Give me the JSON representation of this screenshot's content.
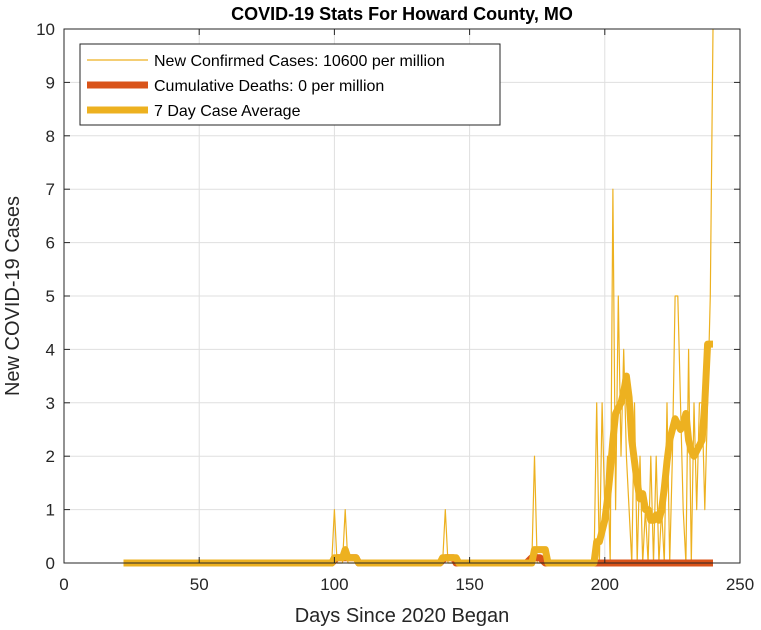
{
  "chart_data": {
    "type": "line",
    "title": "COVID-19 Stats For Howard County, MO",
    "xlabel": "Days Since 2020 Began",
    "ylabel": "New COVID-19 Cases",
    "xlim": [
      0,
      250
    ],
    "ylim": [
      0,
      10
    ],
    "xticks": [
      0,
      50,
      100,
      150,
      200,
      250
    ],
    "yticks": [
      0,
      1,
      2,
      3,
      4,
      5,
      6,
      7,
      8,
      9,
      10
    ],
    "grid": true,
    "legend_position": "top-left",
    "series": [
      {
        "name": "New Confirmed Cases: 10600 per million",
        "color": "#EDB120",
        "x": [
          22,
          99,
          100,
          101,
          103,
          104,
          105,
          140,
          141,
          142,
          173,
          174,
          175,
          196,
          197,
          198,
          199,
          200,
          201,
          202,
          203,
          204,
          205,
          206,
          207,
          208,
          209,
          210,
          211,
          212,
          213,
          214,
          215,
          216,
          217,
          218,
          219,
          220,
          221,
          222,
          223,
          224,
          225,
          226,
          227,
          228,
          229,
          230,
          231,
          232,
          233,
          234,
          235,
          236,
          237,
          238,
          239,
          240
        ],
        "y": [
          0,
          0,
          1,
          0,
          0,
          1,
          0,
          0,
          1,
          0,
          0,
          2,
          0,
          0,
          3,
          0,
          3,
          1,
          2,
          0,
          7,
          1,
          5,
          2,
          4,
          2,
          1,
          0,
          3,
          0,
          2,
          0,
          1,
          0,
          2,
          0,
          2,
          0,
          1,
          0,
          3,
          0,
          2,
          5,
          5,
          3,
          1,
          0,
          4,
          0,
          3,
          1,
          3,
          3,
          1,
          3,
          5,
          10
        ]
      },
      {
        "name": "Cumulative Deaths: 0 per million",
        "color": "#D95319",
        "x": [
          22,
          99,
          100,
          101,
          102,
          103,
          104,
          105,
          106,
          107,
          108,
          109,
          139,
          140,
          141,
          142,
          143,
          144,
          145,
          146,
          171,
          172,
          173,
          174,
          175,
          176,
          177,
          178,
          179,
          180,
          196,
          197,
          198,
          199,
          200,
          201,
          202,
          203,
          204,
          205,
          206,
          207,
          208,
          209,
          210,
          211,
          212,
          213,
          214,
          215,
          216,
          217,
          218,
          219,
          220,
          221,
          222,
          223,
          224,
          225,
          226,
          227,
          228,
          229,
          230,
          231,
          232,
          233,
          234,
          235,
          236,
          237,
          238,
          239,
          240
        ],
        "y": [
          0,
          0,
          0.05,
          0.1,
          0.1,
          0.1,
          0.1,
          0.1,
          0.1,
          0.1,
          0.1,
          0,
          0,
          0.05,
          0.1,
          0.1,
          0.1,
          0.1,
          0,
          0,
          0,
          0.05,
          0.1,
          0.1,
          0.1,
          0.1,
          0.05,
          0,
          0,
          0,
          0,
          0,
          0,
          0,
          0,
          0,
          0,
          0,
          0,
          0,
          0,
          0,
          0,
          0,
          0,
          0,
          0,
          0,
          0,
          0,
          0,
          0,
          0,
          0,
          0,
          0,
          0,
          0,
          0,
          0,
          0,
          0,
          0,
          0,
          0,
          0,
          0,
          0,
          0,
          0,
          0,
          0,
          0,
          0,
          0
        ]
      },
      {
        "name": "7 Day Case Average",
        "color": "#EDB120",
        "x": [
          22,
          99,
          100,
          101,
          102,
          103,
          104,
          105,
          106,
          107,
          108,
          109,
          139,
          140,
          141,
          142,
          143,
          144,
          145,
          146,
          173,
          174,
          175,
          176,
          177,
          178,
          179,
          180,
          196,
          197,
          198,
          199,
          200,
          201,
          202,
          203,
          204,
          205,
          206,
          207,
          208,
          209,
          210,
          211,
          212,
          213,
          214,
          215,
          216,
          217,
          218,
          219,
          220,
          221,
          222,
          223,
          224,
          225,
          226,
          227,
          228,
          229,
          230,
          231,
          232,
          233,
          234,
          235,
          236,
          237,
          238,
          239,
          240
        ],
        "y": [
          0,
          0,
          0.1,
          0.1,
          0.1,
          0.1,
          0.25,
          0.1,
          0.1,
          0.1,
          0.1,
          0,
          0,
          0.1,
          0.1,
          0.1,
          0.1,
          0.1,
          0.1,
          0,
          0,
          0.25,
          0.25,
          0.25,
          0.25,
          0.25,
          0,
          0,
          0,
          0.4,
          0.4,
          0.6,
          0.8,
          1.2,
          1.7,
          2.3,
          2.8,
          2.9,
          3.0,
          3.2,
          3.5,
          3.1,
          2.3,
          1.9,
          1.5,
          1.2,
          1.3,
          1.0,
          1.0,
          0.8,
          0.8,
          0.9,
          0.8,
          1.0,
          1.4,
          1.9,
          2.3,
          2.5,
          2.7,
          2.6,
          2.5,
          2.6,
          2.8,
          2.3,
          2.1,
          2.0,
          2.1,
          2.2,
          2.3,
          3.0,
          4.1,
          4.1,
          4.1
        ]
      }
    ]
  }
}
